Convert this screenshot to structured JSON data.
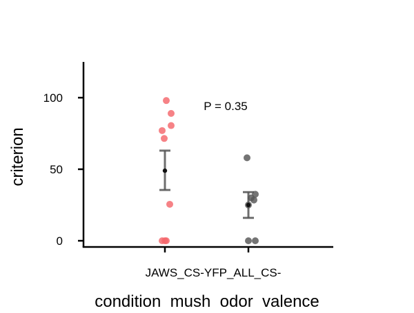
{
  "chart_data": {
    "type": "scatter",
    "title": "",
    "xlabel": "condition  mush  odor  valence",
    "ylabel": "criterion",
    "categories": [
      "JAWS_CS-",
      "YFP_ALL_CS-"
    ],
    "category_tick_text": "JAWS_CS-YFP_ALL_CS-",
    "ylim": [
      -5,
      125
    ],
    "yticks": [
      0,
      50,
      100
    ],
    "grid": false,
    "legend": "none",
    "annotation": "P = 0.35",
    "series": [
      {
        "category": "JAWS_CS-",
        "color": "#f4666b",
        "points": [
          98,
          89,
          80.5,
          77,
          71.5,
          25.5,
          0,
          0,
          0
        ],
        "mean": 49,
        "error": [
          35.5,
          63
        ]
      },
      {
        "category": "YFP_ALL_CS-",
        "color": "#555555",
        "points": [
          58,
          32.5,
          30,
          28.5,
          25,
          0,
          0
        ],
        "mean": 25,
        "error": [
          16,
          34
        ]
      }
    ],
    "error_bar_color": "#555555"
  }
}
